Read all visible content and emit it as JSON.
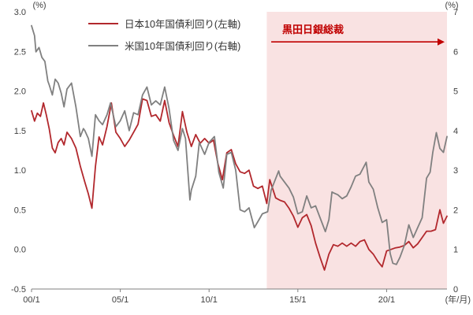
{
  "chart_data": {
    "type": "line",
    "title": "",
    "x_axis": {
      "unit_label": "(年/月)",
      "range": [
        2000,
        2023.4
      ],
      "ticks": [
        {
          "v": 2000,
          "label": "00/1"
        },
        {
          "v": 2005,
          "label": "05/1"
        },
        {
          "v": 2010,
          "label": "10/1"
        },
        {
          "v": 2015,
          "label": "15/1"
        },
        {
          "v": 2020,
          "label": "20/1"
        }
      ]
    },
    "y_axis_left": {
      "unit_label": "(%)",
      "range": [
        -0.5,
        3.0
      ],
      "ticks": [
        "3.0",
        "2.5",
        "2.0",
        "1.5",
        "1.0",
        "0.5",
        "0.0",
        "-0.5"
      ]
    },
    "y_axis_right": {
      "unit_label": "(%)",
      "range": [
        0,
        7
      ],
      "ticks": [
        "7",
        "6",
        "5",
        "4",
        "3",
        "2",
        "1",
        "0"
      ]
    },
    "legend_position": "top-left",
    "grid": false,
    "shaded_region": {
      "x_start": 2013.25,
      "x_end": 2023.4,
      "color": "#f9e2e2"
    },
    "annotation": {
      "text": "黒田日銀総裁",
      "color": "#c00000",
      "x_start": 2013.5,
      "x_end": 2023.4,
      "y_left": 2.62
    },
    "series": [
      {
        "name": "日本10年国債利回り(左軸)",
        "axis": "left",
        "color": "#b2282d",
        "points": [
          [
            2000.0,
            1.75
          ],
          [
            2000.17,
            1.62
          ],
          [
            2000.33,
            1.72
          ],
          [
            2000.5,
            1.68
          ],
          [
            2000.67,
            1.85
          ],
          [
            2000.83,
            1.7
          ],
          [
            2001.0,
            1.52
          ],
          [
            2001.17,
            1.28
          ],
          [
            2001.33,
            1.22
          ],
          [
            2001.5,
            1.35
          ],
          [
            2001.67,
            1.4
          ],
          [
            2001.83,
            1.32
          ],
          [
            2002.0,
            1.48
          ],
          [
            2002.25,
            1.4
          ],
          [
            2002.5,
            1.28
          ],
          [
            2002.75,
            1.05
          ],
          [
            2003.0,
            0.85
          ],
          [
            2003.2,
            0.7
          ],
          [
            2003.4,
            0.52
          ],
          [
            2003.6,
            1.05
          ],
          [
            2003.8,
            1.42
          ],
          [
            2004.0,
            1.32
          ],
          [
            2004.25,
            1.55
          ],
          [
            2004.5,
            1.85
          ],
          [
            2004.75,
            1.48
          ],
          [
            2005.0,
            1.4
          ],
          [
            2005.25,
            1.3
          ],
          [
            2005.5,
            1.38
          ],
          [
            2005.75,
            1.48
          ],
          [
            2006.0,
            1.58
          ],
          [
            2006.25,
            1.9
          ],
          [
            2006.5,
            1.88
          ],
          [
            2006.75,
            1.68
          ],
          [
            2007.0,
            1.7
          ],
          [
            2007.25,
            1.62
          ],
          [
            2007.5,
            1.88
          ],
          [
            2007.75,
            1.6
          ],
          [
            2008.0,
            1.44
          ],
          [
            2008.25,
            1.3
          ],
          [
            2008.5,
            1.74
          ],
          [
            2008.75,
            1.48
          ],
          [
            2009.0,
            1.3
          ],
          [
            2009.25,
            1.45
          ],
          [
            2009.5,
            1.34
          ],
          [
            2009.75,
            1.4
          ],
          [
            2010.0,
            1.34
          ],
          [
            2010.25,
            1.38
          ],
          [
            2010.5,
            1.08
          ],
          [
            2010.75,
            0.88
          ],
          [
            2011.0,
            1.22
          ],
          [
            2011.25,
            1.26
          ],
          [
            2011.5,
            1.08
          ],
          [
            2011.75,
            0.98
          ],
          [
            2012.0,
            0.96
          ],
          [
            2012.25,
            1.0
          ],
          [
            2012.5,
            0.8
          ],
          [
            2012.75,
            0.77
          ],
          [
            2013.0,
            0.8
          ],
          [
            2013.25,
            0.58
          ],
          [
            2013.42,
            0.88
          ],
          [
            2013.75,
            0.65
          ],
          [
            2014.0,
            0.62
          ],
          [
            2014.25,
            0.6
          ],
          [
            2014.5,
            0.52
          ],
          [
            2014.75,
            0.42
          ],
          [
            2015.0,
            0.28
          ],
          [
            2015.25,
            0.4
          ],
          [
            2015.5,
            0.44
          ],
          [
            2015.75,
            0.3
          ],
          [
            2016.0,
            0.08
          ],
          [
            2016.25,
            -0.1
          ],
          [
            2016.5,
            -0.26
          ],
          [
            2016.75,
            -0.06
          ],
          [
            2017.0,
            0.06
          ],
          [
            2017.25,
            0.04
          ],
          [
            2017.5,
            0.08
          ],
          [
            2017.75,
            0.04
          ],
          [
            2018.0,
            0.08
          ],
          [
            2018.25,
            0.04
          ],
          [
            2018.5,
            0.1
          ],
          [
            2018.75,
            0.12
          ],
          [
            2019.0,
            0.0
          ],
          [
            2019.25,
            -0.06
          ],
          [
            2019.5,
            -0.15
          ],
          [
            2019.75,
            -0.22
          ],
          [
            2020.0,
            -0.02
          ],
          [
            2020.25,
            0.0
          ],
          [
            2020.5,
            0.02
          ],
          [
            2020.75,
            0.03
          ],
          [
            2021.0,
            0.05
          ],
          [
            2021.25,
            0.1
          ],
          [
            2021.5,
            0.02
          ],
          [
            2021.75,
            0.07
          ],
          [
            2022.0,
            0.15
          ],
          [
            2022.25,
            0.23
          ],
          [
            2022.5,
            0.23
          ],
          [
            2022.75,
            0.25
          ],
          [
            2023.0,
            0.5
          ],
          [
            2023.2,
            0.33
          ],
          [
            2023.4,
            0.42
          ]
        ]
      },
      {
        "name": "米国10年国債利回り(右軸)",
        "axis": "right",
        "color": "#808080",
        "points": [
          [
            2000.0,
            6.65
          ],
          [
            2000.17,
            6.4
          ],
          [
            2000.25,
            5.99
          ],
          [
            2000.42,
            6.1
          ],
          [
            2000.58,
            5.85
          ],
          [
            2000.75,
            5.75
          ],
          [
            2000.92,
            5.25
          ],
          [
            2001.0,
            5.15
          ],
          [
            2001.17,
            4.9
          ],
          [
            2001.33,
            5.3
          ],
          [
            2001.5,
            5.2
          ],
          [
            2001.67,
            4.95
          ],
          [
            2001.83,
            4.6
          ],
          [
            2002.0,
            5.05
          ],
          [
            2002.25,
            5.2
          ],
          [
            2002.5,
            4.6
          ],
          [
            2002.75,
            3.85
          ],
          [
            2002.92,
            4.05
          ],
          [
            2003.0,
            4.0
          ],
          [
            2003.2,
            3.8
          ],
          [
            2003.4,
            3.35
          ],
          [
            2003.6,
            4.4
          ],
          [
            2003.8,
            4.25
          ],
          [
            2004.0,
            4.15
          ],
          [
            2004.25,
            4.4
          ],
          [
            2004.45,
            4.7
          ],
          [
            2004.75,
            4.1
          ],
          [
            2005.0,
            4.25
          ],
          [
            2005.25,
            4.5
          ],
          [
            2005.5,
            4.0
          ],
          [
            2005.75,
            4.45
          ],
          [
            2006.0,
            4.4
          ],
          [
            2006.25,
            4.9
          ],
          [
            2006.5,
            5.1
          ],
          [
            2006.75,
            4.65
          ],
          [
            2007.0,
            4.75
          ],
          [
            2007.25,
            4.65
          ],
          [
            2007.5,
            5.1
          ],
          [
            2007.75,
            4.55
          ],
          [
            2008.0,
            3.75
          ],
          [
            2008.25,
            3.5
          ],
          [
            2008.5,
            4.05
          ],
          [
            2008.67,
            3.8
          ],
          [
            2008.92,
            2.25
          ],
          [
            2009.0,
            2.5
          ],
          [
            2009.25,
            2.85
          ],
          [
            2009.45,
            3.7
          ],
          [
            2009.75,
            3.4
          ],
          [
            2010.0,
            3.7
          ],
          [
            2010.3,
            3.85
          ],
          [
            2010.55,
            2.95
          ],
          [
            2010.8,
            2.55
          ],
          [
            2011.0,
            3.4
          ],
          [
            2011.25,
            3.45
          ],
          [
            2011.5,
            3.0
          ],
          [
            2011.75,
            2.0
          ],
          [
            2012.0,
            1.95
          ],
          [
            2012.25,
            2.05
          ],
          [
            2012.55,
            1.55
          ],
          [
            2012.75,
            1.7
          ],
          [
            2013.0,
            1.9
          ],
          [
            2013.3,
            1.95
          ],
          [
            2013.5,
            2.5
          ],
          [
            2013.92,
            2.98
          ],
          [
            2014.0,
            2.85
          ],
          [
            2014.25,
            2.7
          ],
          [
            2014.5,
            2.55
          ],
          [
            2014.75,
            2.32
          ],
          [
            2015.0,
            1.9
          ],
          [
            2015.25,
            1.95
          ],
          [
            2015.5,
            2.35
          ],
          [
            2015.75,
            2.05
          ],
          [
            2016.0,
            2.1
          ],
          [
            2016.25,
            1.8
          ],
          [
            2016.55,
            1.45
          ],
          [
            2016.75,
            1.75
          ],
          [
            2016.92,
            2.45
          ],
          [
            2017.0,
            2.43
          ],
          [
            2017.25,
            2.38
          ],
          [
            2017.5,
            2.28
          ],
          [
            2017.75,
            2.35
          ],
          [
            2018.0,
            2.58
          ],
          [
            2018.25,
            2.85
          ],
          [
            2018.5,
            2.9
          ],
          [
            2018.85,
            3.2
          ],
          [
            2019.0,
            2.7
          ],
          [
            2019.25,
            2.52
          ],
          [
            2019.5,
            2.05
          ],
          [
            2019.75,
            1.68
          ],
          [
            2020.0,
            1.75
          ],
          [
            2020.2,
            0.9
          ],
          [
            2020.35,
            0.65
          ],
          [
            2020.55,
            0.62
          ],
          [
            2020.75,
            0.8
          ],
          [
            2021.0,
            1.1
          ],
          [
            2021.25,
            1.62
          ],
          [
            2021.5,
            1.3
          ],
          [
            2021.75,
            1.55
          ],
          [
            2022.0,
            1.8
          ],
          [
            2022.25,
            2.8
          ],
          [
            2022.45,
            2.95
          ],
          [
            2022.6,
            3.45
          ],
          [
            2022.8,
            3.95
          ],
          [
            2023.0,
            3.55
          ],
          [
            2023.2,
            3.45
          ],
          [
            2023.4,
            3.85
          ]
        ]
      }
    ]
  }
}
